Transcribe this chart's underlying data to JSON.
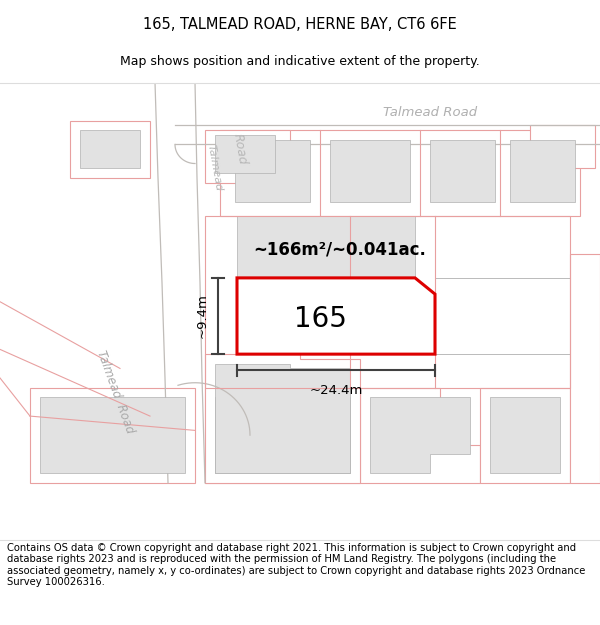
{
  "title": "165, TALMEAD ROAD, HERNE BAY, CT6 6FE",
  "subtitle": "Map shows position and indicative extent of the property.",
  "footer": "Contains OS data © Crown copyright and database right 2021. This information is subject to Crown copyright and database rights 2023 and is reproduced with the permission of HM Land Registry. The polygons (including the associated geometry, namely x, y co-ordinates) are subject to Crown copyright and database rights 2023 Ordnance Survey 100026316.",
  "area_text": "~166m²/~0.041ac.",
  "house_number": "165",
  "width_label": "~24.4m",
  "height_label": "~9.4m",
  "road_label_diag": "Talmead  Road",
  "road_label_horiz": "Talmead Road",
  "highlight_color": "#dd0000",
  "building_fill": "#e2e2e2",
  "building_ec": "#b0b0b0",
  "road_line_color": "#c0bcb8",
  "pink_outline": "#e8a0a0",
  "dim_line_color": "#404040",
  "map_bg": "#faf8f5",
  "white": "#ffffff",
  "title_fontsize": 10.5,
  "subtitle_fontsize": 9,
  "footer_fontsize": 7.2
}
